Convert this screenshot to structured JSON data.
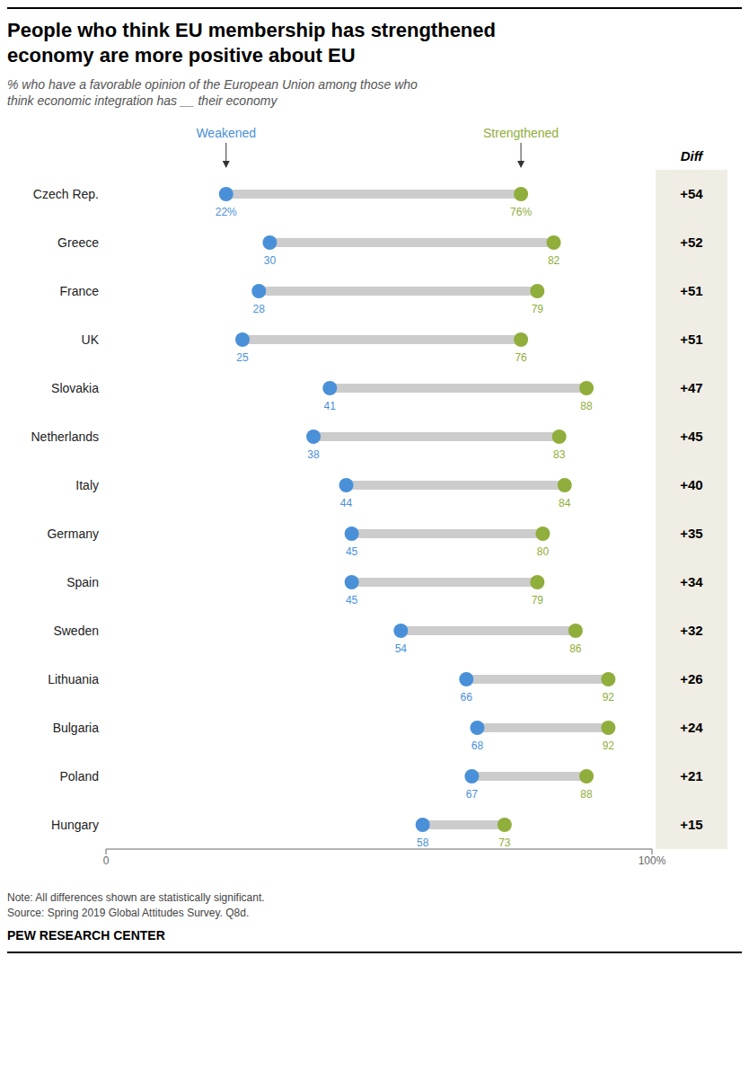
{
  "chart_data": {
    "type": "dumbbell",
    "title": "People who think EU membership has strengthened\neconomy are more positive about EU",
    "subtitle": "% who have a favorable opinion of the European Union among those who\nthink economic integration has __ their economy",
    "categories": [
      "Czech Rep.",
      "Greece",
      "France",
      "UK",
      "Slovakia",
      "Netherlands",
      "Italy",
      "Germany",
      "Spain",
      "Sweden",
      "Lithuania",
      "Bulgaria",
      "Poland",
      "Hungary"
    ],
    "orientation": "horizontal",
    "series": [
      {
        "name": "Weakened",
        "color": "#4a90d9",
        "values": [
          22,
          30,
          28,
          25,
          41,
          38,
          44,
          45,
          45,
          54,
          66,
          68,
          67,
          58
        ],
        "value_labels": [
          "22%",
          "30",
          "28",
          "25",
          "41",
          "38",
          "44",
          "45",
          "45",
          "54",
          "66",
          "68",
          "67",
          "58"
        ]
      },
      {
        "name": "Strengthened",
        "color": "#8fae3b",
        "values": [
          76,
          82,
          79,
          76,
          88,
          83,
          84,
          80,
          79,
          86,
          92,
          92,
          88,
          73
        ],
        "value_labels": [
          "76%",
          "82",
          "79",
          "76",
          "88",
          "83",
          "84",
          "80",
          "79",
          "86",
          "92",
          "92",
          "88",
          "73"
        ]
      }
    ],
    "diff": {
      "title": "Diff",
      "values": [
        54,
        52,
        51,
        51,
        47,
        45,
        40,
        35,
        34,
        32,
        26,
        24,
        21,
        15
      ],
      "value_labels": [
        "+54",
        "+52",
        "+51",
        "+51",
        "+47",
        "+45",
        "+40",
        "+35",
        "+34",
        "+32",
        "+26",
        "+24",
        "+21",
        "+15"
      ],
      "color": "#f0ede4"
    },
    "xlim": [
      0,
      100
    ],
    "xticks": [
      0,
      {
        "value": 100,
        "label": "100%"
      }
    ],
    "data_labels": true,
    "grid": false,
    "note": "Note: All differences shown are statistically significant.\nSource: Spring 2019 Global Attitudes Survey. Q8d.",
    "source": "PEW RESEARCH CENTER"
  }
}
